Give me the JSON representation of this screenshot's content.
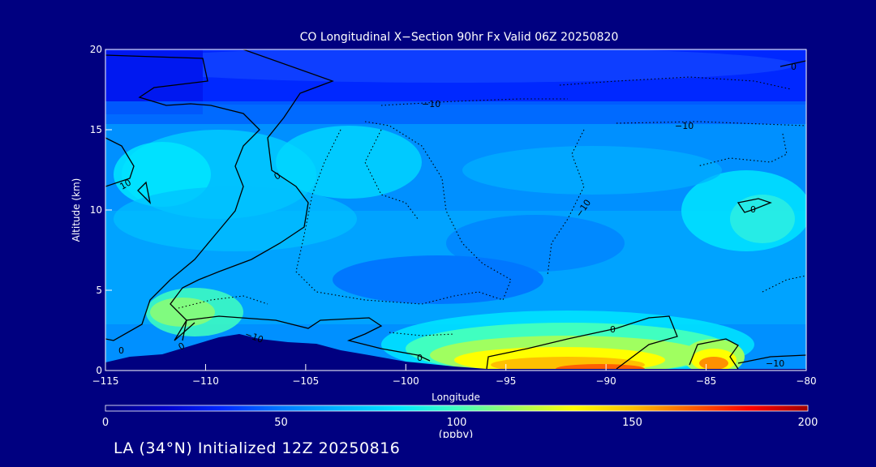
{
  "chart_data": {
    "type": "heatmap",
    "title": "CO Longitudinal X−Section 90hr  Fx Valid 06Z 20250820",
    "xlabel": "Longitude",
    "ylabel": "Altitude (km)",
    "xlim": [
      -115,
      -80
    ],
    "ylim": [
      0,
      20
    ],
    "x_ticks": [
      -115,
      -110,
      -105,
      -100,
      -95,
      -90,
      -85,
      -80
    ],
    "x_tick_labels": [
      "−115",
      "−110",
      "−105",
      "−100",
      "−95",
      "−90",
      "−85",
      "−80"
    ],
    "y_ticks": [
      0,
      5,
      10,
      15,
      20
    ],
    "y_tick_labels": [
      "0",
      "5",
      "10",
      "15",
      "20"
    ],
    "colorbar": {
      "min": 0,
      "max": 200,
      "ticks": [
        0,
        50,
        100,
        150,
        200
      ],
      "tick_labels": [
        "0",
        "50",
        "100",
        "150",
        "200"
      ],
      "units": "(ppbv)",
      "colors": [
        "#000080",
        "#0000c8",
        "#0028ff",
        "#0078ff",
        "#00b4ff",
        "#00e6ff",
        "#40ffc0",
        "#a0ff60",
        "#ffff00",
        "#ffc000",
        "#ff6000",
        "#ff0000",
        "#a00000"
      ]
    },
    "contour_labels": [
      "10",
      "0",
      "−10",
      "0",
      "−10",
      "−10",
      "−10",
      "0",
      "0",
      "0",
      "0",
      "0",
      "−10"
    ],
    "grid": false,
    "legend": "colorbar-bottom"
  },
  "footer": {
    "note": "LA (34°N) Initialized 12Z 20250816"
  }
}
